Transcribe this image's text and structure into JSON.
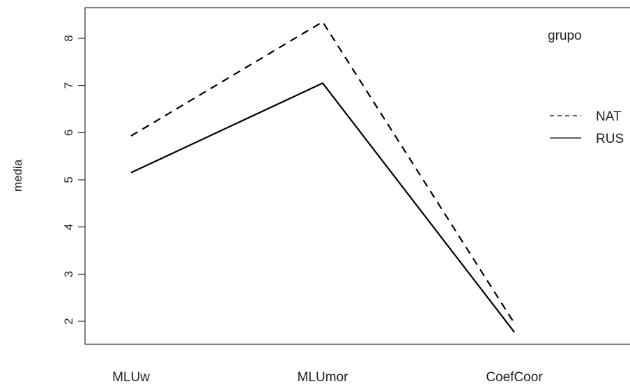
{
  "chart_data": {
    "type": "line",
    "title": "",
    "xlabel": "",
    "ylabel": "media",
    "categories": [
      "MLUw",
      "MLUmor",
      "CoefCoor"
    ],
    "ylim": [
      1.5,
      8.6
    ],
    "yticks": [
      "2",
      "3",
      "4",
      "5",
      "6",
      "7",
      "8"
    ],
    "grid": false,
    "legend": {
      "title": "grupo",
      "position": "top-right"
    },
    "series": [
      {
        "name": "NAT",
        "values": [
          5.93,
          8.35,
          1.96
        ],
        "line_style": "dashed",
        "color": "#000000"
      },
      {
        "name": "RUS",
        "values": [
          5.15,
          7.05,
          1.77
        ],
        "line_style": "solid",
        "color": "#000000"
      }
    ]
  }
}
